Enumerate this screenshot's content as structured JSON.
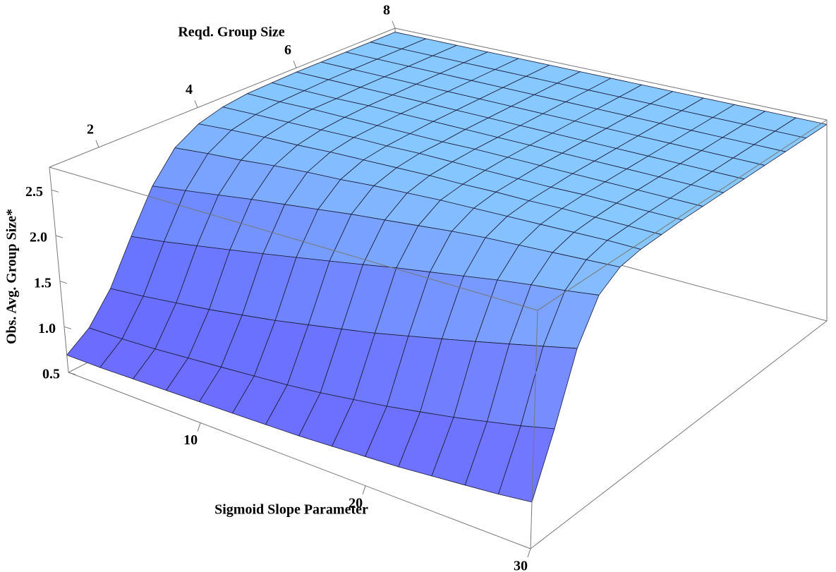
{
  "chart_data": {
    "type": "surface",
    "x_label": "Sigmoid Slope Parameter",
    "y_label": "Reqd. Group Size",
    "z_label": "Obs. Avg. Group Size*",
    "x": [
      2,
      4,
      6,
      8,
      10,
      12,
      14,
      16,
      18,
      20,
      22,
      24,
      26,
      28,
      30
    ],
    "y": [
      1,
      1.5,
      2,
      2.5,
      3,
      3.5,
      4,
      4.5,
      5,
      5.5,
      6,
      6.5,
      7,
      7.5,
      8
    ],
    "z": [
      [
        0.69,
        0.69,
        0.7,
        0.71,
        0.72,
        0.73,
        0.74,
        0.75,
        0.77,
        0.79,
        0.81,
        0.84,
        0.87,
        0.9,
        0.94
      ],
      [
        0.86,
        0.87,
        0.89,
        0.92,
        0.95,
        0.98,
        1.01,
        1.05,
        1.1,
        1.15,
        1.21,
        1.27,
        1.34,
        1.41,
        1.49
      ],
      [
        1.17,
        1.21,
        1.26,
        1.31,
        1.37,
        1.43,
        1.5,
        1.57,
        1.64,
        1.72,
        1.8,
        1.88,
        1.96,
        2.04,
        2.12
      ],
      [
        1.63,
        1.69,
        1.76,
        1.83,
        1.9,
        1.97,
        2.04,
        2.11,
        2.18,
        2.24,
        2.3,
        2.36,
        2.41,
        2.45,
        2.5
      ],
      [
        2.08,
        2.14,
        2.2,
        2.26,
        2.31,
        2.36,
        2.41,
        2.45,
        2.49,
        2.53,
        2.56,
        2.58,
        2.6,
        2.62,
        2.64
      ],
      [
        2.4,
        2.44,
        2.47,
        2.51,
        2.54,
        2.56,
        2.59,
        2.61,
        2.63,
        2.64,
        2.65,
        2.66,
        2.67,
        2.68,
        2.68
      ],
      [
        2.56,
        2.59,
        2.61,
        2.62,
        2.64,
        2.65,
        2.66,
        2.67,
        2.67,
        2.68,
        2.68,
        2.69,
        2.69,
        2.69,
        2.69
      ],
      [
        2.64,
        2.65,
        2.66,
        2.67,
        2.68,
        2.68,
        2.69,
        2.69,
        2.69,
        2.69,
        2.69,
        2.7,
        2.7,
        2.7,
        2.7
      ],
      [
        2.68,
        2.68,
        2.69,
        2.69,
        2.69,
        2.69,
        2.69,
        2.7,
        2.7,
        2.7,
        2.7,
        2.7,
        2.7,
        2.7,
        2.7
      ],
      [
        2.69,
        2.69,
        2.69,
        2.7,
        2.7,
        2.7,
        2.7,
        2.7,
        2.7,
        2.7,
        2.7,
        2.7,
        2.7,
        2.7,
        2.7
      ],
      [
        2.7,
        2.7,
        2.7,
        2.7,
        2.7,
        2.7,
        2.7,
        2.7,
        2.7,
        2.7,
        2.7,
        2.7,
        2.7,
        2.7,
        2.7
      ],
      [
        2.7,
        2.7,
        2.7,
        2.7,
        2.7,
        2.7,
        2.7,
        2.7,
        2.7,
        2.7,
        2.7,
        2.7,
        2.7,
        2.7,
        2.7
      ],
      [
        2.7,
        2.7,
        2.7,
        2.7,
        2.7,
        2.7,
        2.7,
        2.7,
        2.7,
        2.7,
        2.7,
        2.7,
        2.7,
        2.7,
        2.7
      ],
      [
        2.7,
        2.7,
        2.7,
        2.7,
        2.7,
        2.7,
        2.7,
        2.7,
        2.7,
        2.7,
        2.7,
        2.7,
        2.7,
        2.7,
        2.7
      ],
      [
        2.7,
        2.7,
        2.7,
        2.7,
        2.7,
        2.7,
        2.7,
        2.7,
        2.7,
        2.7,
        2.7,
        2.7,
        2.7,
        2.7,
        2.7
      ]
    ],
    "xlim": [
      2,
      30
    ],
    "ylim": [
      1,
      8
    ],
    "zlim": [
      0.5,
      2.75
    ],
    "xticks": [
      10,
      20,
      30
    ],
    "yticks": [
      2,
      4,
      6,
      8
    ],
    "zticks": [
      0.5,
      {
        "value": 1,
        "label": "1.0"
      },
      1.5,
      {
        "value": 2,
        "label": "2.0"
      },
      2.5
    ],
    "colors": [
      "#7070ff",
      "#88ccff"
    ],
    "box": true
  }
}
